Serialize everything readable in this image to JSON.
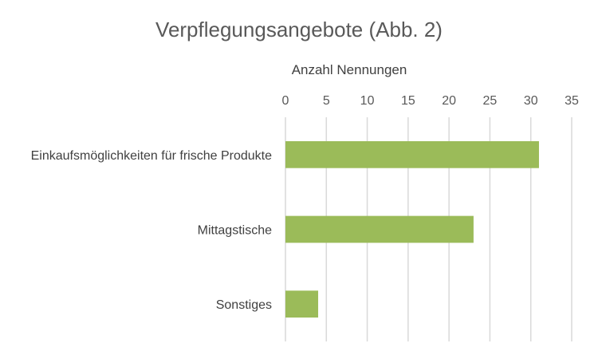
{
  "chart_data": {
    "type": "bar",
    "orientation": "horizontal",
    "title": "Verpflegungsangebote (Abb. 2)",
    "xlabel": "Anzahl Nennungen",
    "ylabel": "",
    "xlim": [
      0,
      35
    ],
    "ticks": [
      0,
      5,
      10,
      15,
      20,
      25,
      30,
      35
    ],
    "tick_labels": [
      "0",
      "5",
      "10",
      "15",
      "20",
      "25",
      "30",
      "35"
    ],
    "axis_position": "top",
    "grid": true,
    "legend": "none",
    "categories": [
      "Einkaufsmöglichkeiten für frische Produkte",
      "Mittagstische",
      "Sonstiges"
    ],
    "values": [
      31,
      23,
      4
    ],
    "bar_color": "#9BBB59"
  }
}
